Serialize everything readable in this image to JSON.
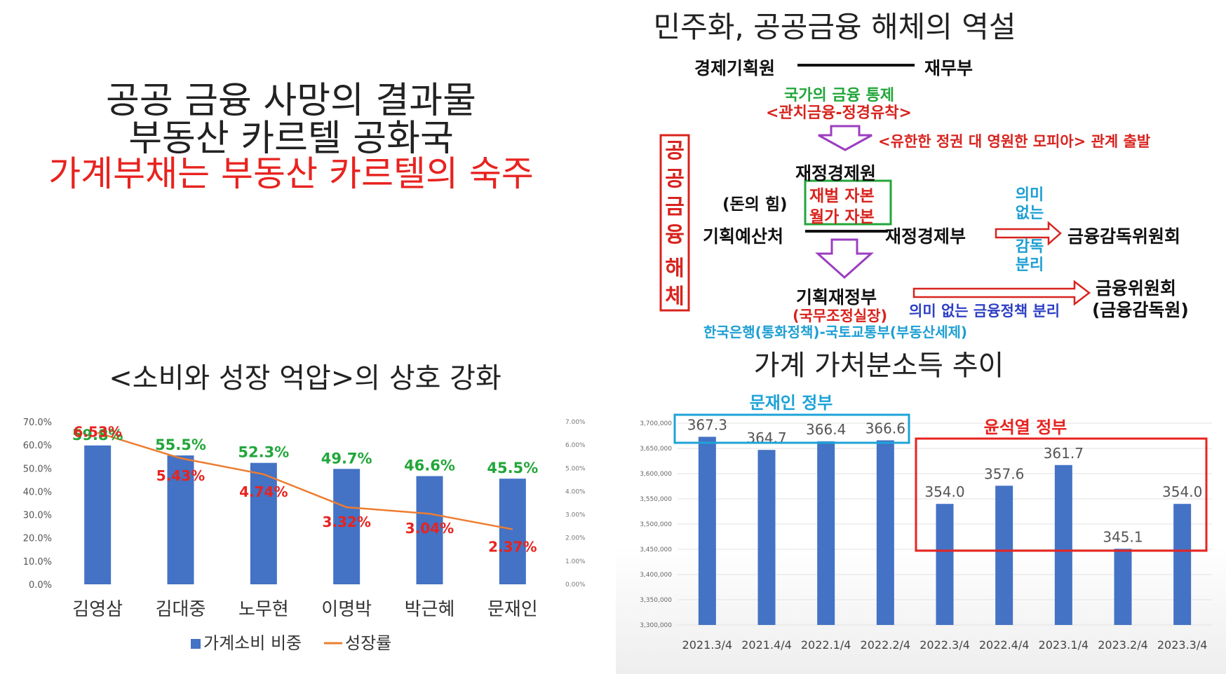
{
  "top_left": {
    "line1": "공공 금융 사망의 결과물",
    "line2": "부동산 카르텔 공화국",
    "line3": "가계부채는 부동산 카르텔의 숙주"
  },
  "diagram": {
    "title": "민주화, 공공금융 해체의 역설",
    "gyeongje": "경제기획원",
    "jaemu": "재무부",
    "control1": "국가의 금융 통제",
    "control2": "<관치금융-정경유착>",
    "mafia": "<유한한 정권 대 영원한 모피아> 관계 출발",
    "vertical_label": "공공 금융 해체",
    "vertical_chars": [
      "공",
      "공",
      "금",
      "융",
      "해",
      "체"
    ],
    "jaejeong_gyeongje_won": "재정경제원",
    "money_power": "(돈의 힘)",
    "chaebol": "재벌 자본",
    "wallstreet": "월가 자본",
    "planning_budget": "기획예산처",
    "jaejeong_gyeongje_bu": "재정경제부",
    "meaningless_sup": [
      "의미",
      "없는",
      "감독",
      "분리"
    ],
    "fsc_commission": "금융감독위원회",
    "planning_finance": "기획재정부",
    "pm_office": "(국무조정실장)",
    "policy_sep": "의미 없는 금융정책 분리",
    "fsc": "금융위원회",
    "fss": "(금융감독원)",
    "bok": "한국은행(통화정책)-국토교통부(부동산세제)"
  },
  "chart_data": [
    {
      "type": "bar",
      "title": "<소비와 성장 억압>의 상호 강화",
      "categories": [
        "김영삼",
        "김대중",
        "노무현",
        "이명박",
        "박근혜",
        "문재인"
      ],
      "series": [
        {
          "name": "가계소비 비중",
          "type": "bar",
          "values": [
            59.8,
            55.5,
            52.3,
            49.7,
            46.6,
            45.5
          ],
          "labels": [
            "59.8%",
            "55.5%",
            "52.3%",
            "49.7%",
            "46.6%",
            "45.5%"
          ],
          "color": "#4472c4",
          "label_color": "#22a63a"
        },
        {
          "name": "성장률",
          "type": "line",
          "values": [
            6.53,
            5.43,
            4.74,
            3.32,
            3.04,
            2.37
          ],
          "labels": [
            "6.53%",
            "5.43%",
            "4.74%",
            "3.32%",
            "3.04%",
            "2.37%"
          ],
          "color": "#ed7d31",
          "label_color": "#e8231f",
          "axis": "secondary"
        }
      ],
      "y_left_ticks": [
        "0.0%",
        "10.0%",
        "20.0%",
        "30.0%",
        "40.0%",
        "50.0%",
        "60.0%",
        "70.0%"
      ],
      "y_right_ticks": [
        "0.00%",
        "1.00%",
        "2.00%",
        "3.00%",
        "4.00%",
        "5.00%",
        "6.00%",
        "7.00%"
      ],
      "ylim_left": [
        0,
        70
      ],
      "ylim_right": [
        0,
        7
      ],
      "legend": "bottom"
    },
    {
      "type": "bar",
      "title": "가계 가처분소득 추이",
      "categories": [
        "2021.3/4",
        "2021.4/4",
        "2022.1/4",
        "2022.2/4",
        "2022.3/4",
        "2022.4/4",
        "2023.1/4",
        "2023.2/4",
        "2023.3/4"
      ],
      "values": [
        367.3,
        364.7,
        366.4,
        366.6,
        354.0,
        357.6,
        361.7,
        345.1,
        354.0
      ],
      "labels": [
        "367.3",
        "364.7",
        "366.4",
        "366.6",
        "354.0",
        "357.6",
        "361.7",
        "345.1",
        "354.0"
      ],
      "y_ticks": [
        "3,300,000",
        "3,350,000",
        "3,400,000",
        "3,450,000",
        "3,500,000",
        "3,550,000",
        "3,600,000",
        "3,650,000",
        "3,700,000"
      ],
      "ylim": [
        330,
        370
      ],
      "color": "#4472c4",
      "group_moon": "문재인 정부",
      "group_yoon": "윤석열 정부",
      "moon_color": "#1ea3d8",
      "yoon_color": "#e8231f"
    }
  ]
}
